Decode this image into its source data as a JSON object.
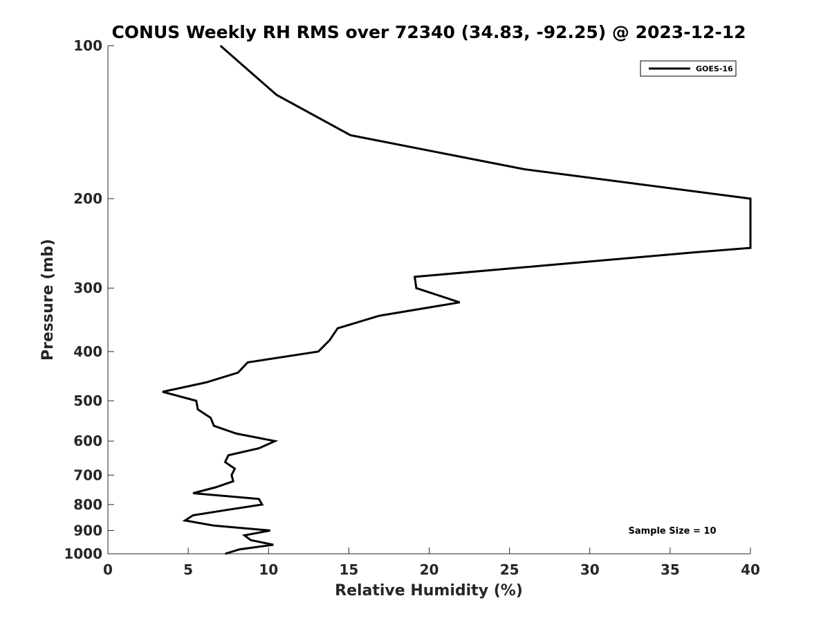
{
  "chart_data": {
    "type": "line",
    "title": "CONUS Weekly RH RMS over 72340 (34.83, -92.25) @ 2023-12-12",
    "xlabel": "Relative Humidity (%)",
    "ylabel": "Pressure (mb)",
    "xlim": [
      0,
      40
    ],
    "ylim": [
      100,
      1000
    ],
    "y_scale": "log",
    "y_reversed": true,
    "grid": false,
    "legend_position": "top-right",
    "x_ticks": [
      "0",
      "5",
      "10",
      "15",
      "20",
      "25",
      "30",
      "35",
      "40"
    ],
    "y_ticks": [
      "100",
      "200",
      "300",
      "400",
      "500",
      "600",
      "700",
      "800",
      "900",
      "1000"
    ],
    "annotation": "Sample Size = 10",
    "series": [
      {
        "name": "GOES-16",
        "color": "#000000",
        "points": [
          [
            7.0,
            100
          ],
          [
            10.5,
            125
          ],
          [
            15.1,
            150
          ],
          [
            25.9,
            175
          ],
          [
            40.0,
            200
          ],
          [
            40.0,
            250
          ],
          [
            36.6,
            255
          ],
          [
            19.1,
            285
          ],
          [
            19.2,
            300
          ],
          [
            21.9,
            320
          ],
          [
            16.9,
            340
          ],
          [
            14.3,
            360
          ],
          [
            13.8,
            380
          ],
          [
            13.1,
            400
          ],
          [
            8.7,
            420
          ],
          [
            8.1,
            440
          ],
          [
            6.1,
            460
          ],
          [
            3.4,
            480
          ],
          [
            5.5,
            500
          ],
          [
            5.6,
            520
          ],
          [
            6.4,
            540
          ],
          [
            6.6,
            560
          ],
          [
            8.0,
            580
          ],
          [
            10.4,
            600
          ],
          [
            9.4,
            620
          ],
          [
            7.5,
            640
          ],
          [
            7.3,
            660
          ],
          [
            7.9,
            680
          ],
          [
            7.7,
            700
          ],
          [
            7.8,
            720
          ],
          [
            6.7,
            740
          ],
          [
            5.3,
            760
          ],
          [
            9.4,
            780
          ],
          [
            9.6,
            800
          ],
          [
            7.4,
            820
          ],
          [
            5.3,
            840
          ],
          [
            4.8,
            860
          ],
          [
            6.6,
            880
          ],
          [
            10.1,
            900
          ],
          [
            8.5,
            920
          ],
          [
            8.9,
            940
          ],
          [
            10.3,
            960
          ],
          [
            8.2,
            980
          ],
          [
            7.3,
            1000
          ]
        ]
      }
    ]
  }
}
